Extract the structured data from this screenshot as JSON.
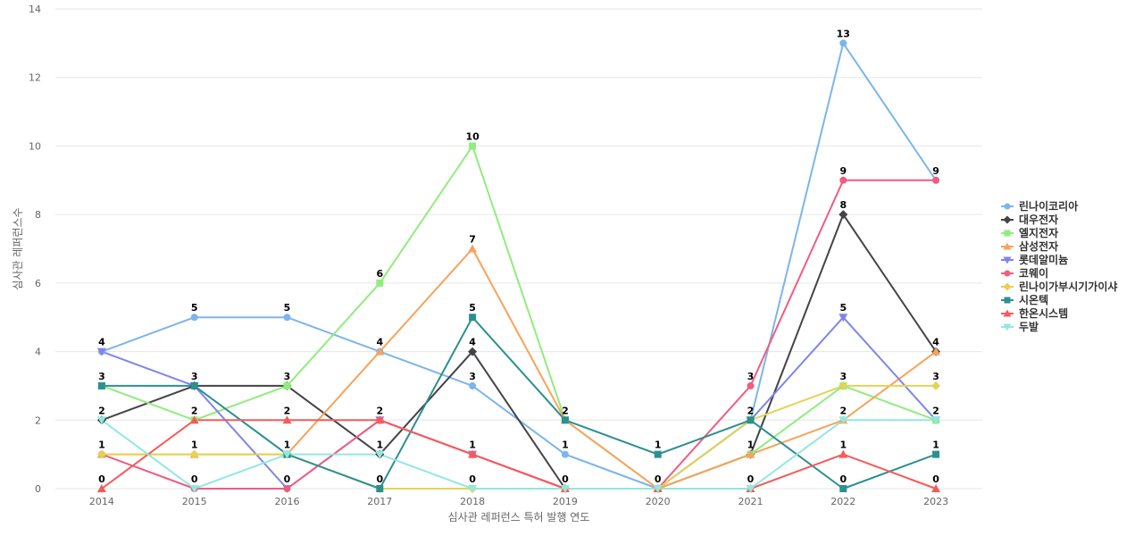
{
  "chart_data": {
    "type": "line",
    "title": "",
    "xlabel": "심사관 레퍼런스 특허 발행 연도",
    "ylabel": "심사관 레퍼런스수",
    "categories": [
      "2014",
      "2015",
      "2016",
      "2017",
      "2018",
      "2019",
      "2020",
      "2021",
      "2022",
      "2023"
    ],
    "y_ticks": [
      "0",
      "2",
      "4",
      "6",
      "8",
      "10",
      "12",
      "14"
    ],
    "ylim": [
      0,
      14
    ],
    "grid": true,
    "legend_position": "right",
    "series": [
      {
        "name": "린나이코리아",
        "color": "#7cb5ec",
        "marker": "circle",
        "values": [
          4,
          5,
          5,
          4,
          3,
          1,
          0,
          2,
          13,
          9
        ]
      },
      {
        "name": "대우전자",
        "color": "#434348",
        "marker": "diamond",
        "values": [
          2,
          3,
          3,
          1,
          4,
          0,
          0,
          1,
          8,
          4
        ]
      },
      {
        "name": "엘지전자",
        "color": "#90ed7d",
        "marker": "square",
        "values": [
          3,
          2,
          3,
          6,
          10,
          2,
          0,
          1,
          3,
          2
        ]
      },
      {
        "name": "삼성전자",
        "color": "#f7a35c",
        "marker": "triangle",
        "values": [
          1,
          1,
          1,
          4,
          7,
          2,
          0,
          1,
          2,
          4
        ]
      },
      {
        "name": "롯데알미늄",
        "color": "#8085e9",
        "marker": "triangle-down",
        "values": [
          4,
          3,
          0,
          2,
          1,
          0,
          0,
          2,
          5,
          2
        ]
      },
      {
        "name": "코웨이",
        "color": "#f15c80",
        "marker": "circle",
        "values": [
          1,
          0,
          0,
          2,
          1,
          0,
          0,
          3,
          9,
          9
        ]
      },
      {
        "name": "린나이가부시기가이샤",
        "color": "#e4d354",
        "marker": "diamond",
        "values": [
          1,
          1,
          1,
          0,
          0,
          0,
          0,
          2,
          3,
          3
        ]
      },
      {
        "name": "시온텍",
        "color": "#2b908f",
        "marker": "square",
        "values": [
          3,
          3,
          1,
          0,
          5,
          2,
          1,
          2,
          0,
          1
        ]
      },
      {
        "name": "한온시스템",
        "color": "#f45b5b",
        "marker": "triangle",
        "values": [
          0,
          2,
          2,
          2,
          1,
          0,
          0,
          0,
          1,
          0
        ]
      },
      {
        "name": "두발",
        "color": "#91e8e1",
        "marker": "triangle-down",
        "values": [
          2,
          0,
          1,
          1,
          0,
          0,
          0,
          0,
          2,
          2
        ]
      }
    ],
    "point_labels": [
      {
        "x": "2014",
        "value": 0,
        "series": "한온시스템"
      },
      {
        "x": "2014",
        "value": 1,
        "series": "코웨이"
      },
      {
        "x": "2014",
        "value": 2,
        "series": "대우전자"
      },
      {
        "x": "2014",
        "value": 3,
        "series": "시온텍"
      },
      {
        "x": "2014",
        "value": 4,
        "series": "린나이코리아"
      },
      {
        "x": "2015",
        "value": 0,
        "series": "코웨이"
      },
      {
        "x": "2015",
        "value": 1,
        "series": "삼성전자"
      },
      {
        "x": "2015",
        "value": 2,
        "series": "한온시스템"
      },
      {
        "x": "2015",
        "value": 3,
        "series": "대우전자"
      },
      {
        "x": "2015",
        "value": 5,
        "series": "린나이코리아"
      },
      {
        "x": "2016",
        "value": 0,
        "series": "코웨이"
      },
      {
        "x": "2016",
        "value": 1,
        "series": "시온텍"
      },
      {
        "x": "2016",
        "value": 2,
        "series": "한온시스템"
      },
      {
        "x": "2016",
        "value": 3,
        "series": "엘지전자"
      },
      {
        "x": "2016",
        "value": 5,
        "series": "린나이코리아"
      },
      {
        "x": "2017",
        "value": 0,
        "series": "시온텍"
      },
      {
        "x": "2017",
        "value": 1,
        "series": "대우전자"
      },
      {
        "x": "2017",
        "value": 2,
        "series": "한온시스템"
      },
      {
        "x": "2017",
        "value": 4,
        "series": "린나이코리아"
      },
      {
        "x": "2017",
        "value": 6,
        "series": "엘지전자"
      },
      {
        "x": "2018",
        "value": 0,
        "series": "두발"
      },
      {
        "x": "2018",
        "value": 1,
        "series": "한온시스템"
      },
      {
        "x": "2018",
        "value": 3,
        "series": "린나이코리아"
      },
      {
        "x": "2018",
        "value": 4,
        "series": "대우전자"
      },
      {
        "x": "2018",
        "value": 5,
        "series": "시온텍"
      },
      {
        "x": "2018",
        "value": 7,
        "series": "삼성전자"
      },
      {
        "x": "2018",
        "value": 10,
        "series": "엘지전자"
      },
      {
        "x": "2019",
        "value": 0,
        "series": "한온시스템"
      },
      {
        "x": "2019",
        "value": 1,
        "series": "린나이코리아"
      },
      {
        "x": "2019",
        "value": 2,
        "series": "삼성전자"
      },
      {
        "x": "2020",
        "value": 0,
        "series": "린나이코리아"
      },
      {
        "x": "2020",
        "value": 1,
        "series": "시온텍"
      },
      {
        "x": "2021",
        "value": 0,
        "series": "두발"
      },
      {
        "x": "2021",
        "value": 1,
        "series": "대우전자"
      },
      {
        "x": "2021",
        "value": 2,
        "series": "시온텍"
      },
      {
        "x": "2021",
        "value": 3,
        "series": "코웨이"
      },
      {
        "x": "2022",
        "value": 0,
        "series": "시온텍"
      },
      {
        "x": "2022",
        "value": 1,
        "series": "한온시스템"
      },
      {
        "x": "2022",
        "value": 2,
        "series": "삼성전자"
      },
      {
        "x": "2022",
        "value": 3,
        "series": "엘지전자"
      },
      {
        "x": "2022",
        "value": 5,
        "series": "롯데알미늄"
      },
      {
        "x": "2022",
        "value": 8,
        "series": "대우전자"
      },
      {
        "x": "2022",
        "value": 9,
        "series": "코웨이"
      },
      {
        "x": "2022",
        "value": 13,
        "series": "린나이코리아"
      },
      {
        "x": "2023",
        "value": 0,
        "series": "한온시스템"
      },
      {
        "x": "2023",
        "value": 1,
        "series": "시온텍"
      },
      {
        "x": "2023",
        "value": 2,
        "series": "두발"
      },
      {
        "x": "2023",
        "value": 3,
        "series": "린나이가부시기가이샤"
      },
      {
        "x": "2023",
        "value": 4,
        "series": "대우전자"
      },
      {
        "x": "2023",
        "value": 9,
        "series": "린나이코리아"
      }
    ]
  }
}
